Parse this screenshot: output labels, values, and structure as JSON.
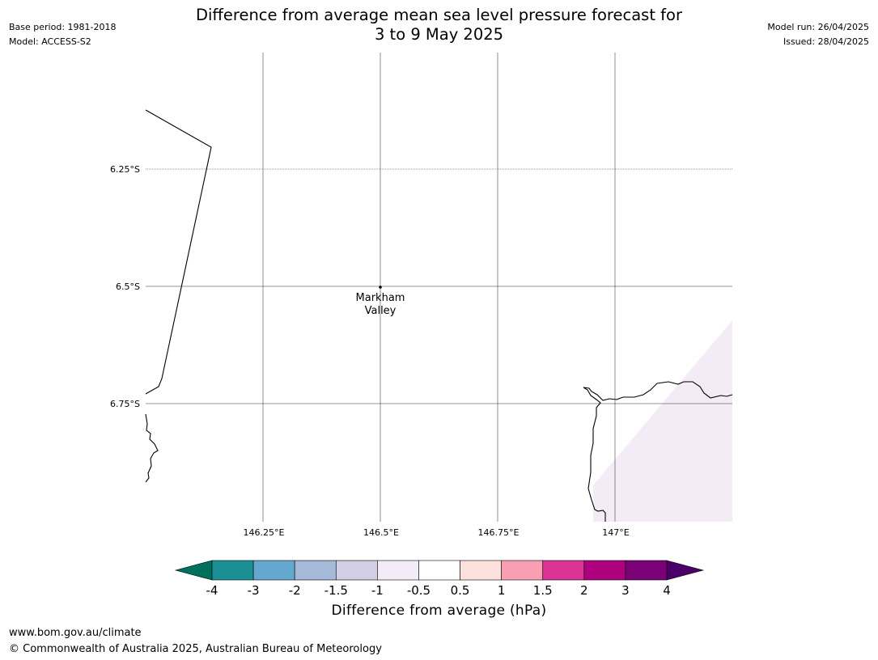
{
  "header": {
    "title_line1": "Difference from average mean sea level pressure forecast for",
    "title_line2": "3 to 9 May 2025",
    "base_period": "Base period: 1981-2018",
    "model": "Model: ACCESS-S2",
    "model_run": "Model run: 26/04/2025",
    "issued": "Issued: 28/04/2025"
  },
  "map": {
    "lat_labels": [
      "6.25°S",
      "6.5°S",
      "6.75°S"
    ],
    "lon_labels": [
      "146.25°E",
      "146.5°E",
      "146.75°E",
      "147°E"
    ],
    "location": {
      "name_line1": "Markham",
      "name_line2": "Valley"
    }
  },
  "colorbar": {
    "title": "Difference from average (hPa)",
    "tick_labels": [
      "-4",
      "-3",
      "-2",
      "-1.5",
      "-1",
      "-0.5",
      "0.5",
      "1",
      "1.5",
      "2",
      "3",
      "4"
    ],
    "colors": [
      "#1a9094",
      "#64a7cf",
      "#a5b9d9",
      "#d1cee5",
      "#f3ecf6",
      "#ffffff",
      "#fee0dd",
      "#f99fb4",
      "#dc3495",
      "#ae017e",
      "#7b0177"
    ],
    "under_color": "#00705e",
    "over_color": "#4a0068",
    "shaded_region_color": "#f3ecf6"
  },
  "footer": {
    "url": "www.bom.gov.au/climate",
    "copyright": "© Commonwealth of Australia 2025, Australian Bureau of Meteorology"
  }
}
